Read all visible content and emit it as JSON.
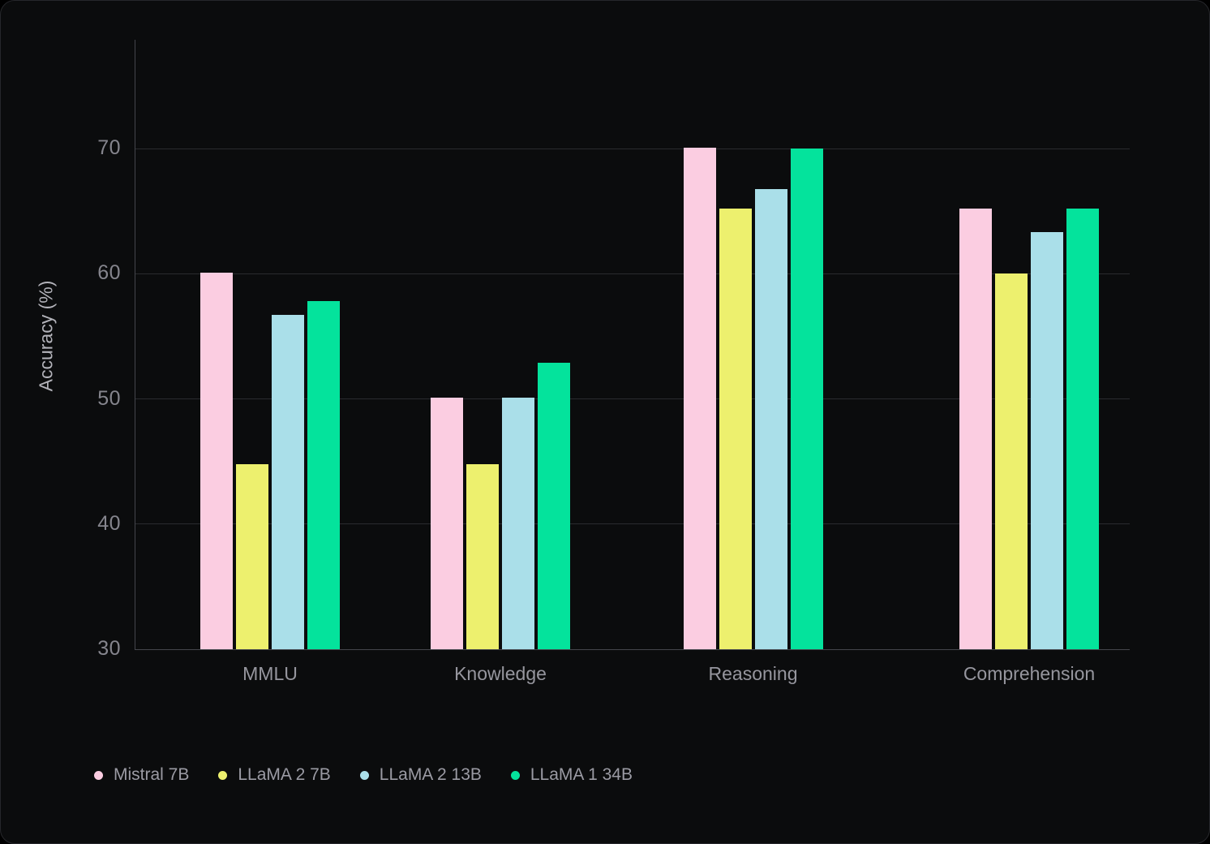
{
  "chart_data": {
    "type": "bar",
    "title": "",
    "categories": [
      "MMLU",
      "Knowledge",
      "Reasoning",
      "Comprehension"
    ],
    "series": [
      {
        "name": "Mistral 7B",
        "color": "#fbcde1",
        "values": [
          60.1,
          50.1,
          70.1,
          65.2
        ]
      },
      {
        "name": "LLaMA 2 7B",
        "color": "#edf06e",
        "values": [
          44.8,
          44.8,
          65.2,
          60.0
        ]
      },
      {
        "name": "LLaMA 2 13B",
        "color": "#aadfe9",
        "values": [
          56.7,
          50.1,
          66.8,
          63.3
        ]
      },
      {
        "name": "LLaMA 1 34B",
        "color": "#04e39c",
        "values": [
          57.8,
          52.9,
          70.0,
          65.2
        ]
      }
    ],
    "xlabel": "",
    "ylabel": "Accuracy (%)",
    "ylim": [
      30,
      78.7
    ],
    "yticks": [
      30,
      40,
      50,
      60,
      70
    ],
    "grid": true,
    "legend_position": "bottom-left",
    "colors": {
      "panel_background": "#0b0c0d",
      "axis_line": "#44464c",
      "gridline": "#2a2b2f",
      "tick_label": "#85858d",
      "category_label": "#96969e",
      "legend_label": "#9b9ba4",
      "axis_title": "#b3b3ba"
    }
  }
}
